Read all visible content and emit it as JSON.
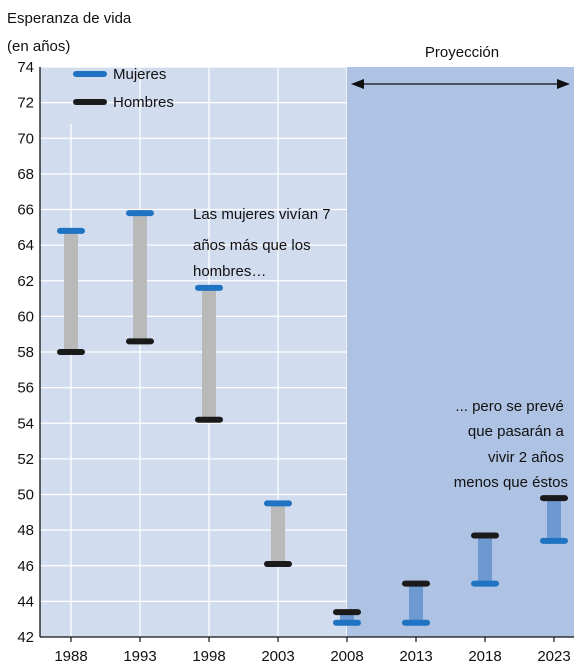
{
  "chart_data": {
    "type": "range-bar",
    "title": "Esperanza de vida",
    "subtitle": "(en años)",
    "categories": [
      "1988",
      "1993",
      "1998",
      "2003",
      "2008",
      "2013",
      "2018",
      "2023"
    ],
    "series": [
      {
        "name": "Mujeres",
        "values": [
          64.8,
          65.8,
          61.6,
          49.5,
          42.8,
          42.8,
          45.0,
          47.4
        ]
      },
      {
        "name": "Hombres",
        "values": [
          58.0,
          58.6,
          54.2,
          46.1,
          43.4,
          45.0,
          47.7,
          49.8
        ]
      }
    ],
    "ylim": [
      42,
      74
    ],
    "yticks": [
      42,
      44,
      46,
      48,
      50,
      52,
      54,
      56,
      58,
      60,
      62,
      64,
      66,
      68,
      70,
      72,
      74
    ],
    "projection": {
      "label": "Proyección",
      "from": "2008",
      "to": "2023"
    },
    "annotations": [
      {
        "lines": [
          "Las mujeres vivían 7",
          "años más que los",
          "hombres…"
        ]
      },
      {
        "lines": [
          "... pero se prevé",
          "que pasarán a",
          "vivir 2 años",
          "menos que éstos"
        ]
      }
    ],
    "grid": true,
    "legend_position": "top-left",
    "colors": {
      "background": "#d2dcef",
      "projection": "#aec2e3",
      "grid": "#ffffff",
      "bar_observed": "#b9b9b9",
      "bar_projected": "#6e98d0",
      "mujeres": "#1f73c2",
      "hombres": "#1a1a1a"
    }
  }
}
